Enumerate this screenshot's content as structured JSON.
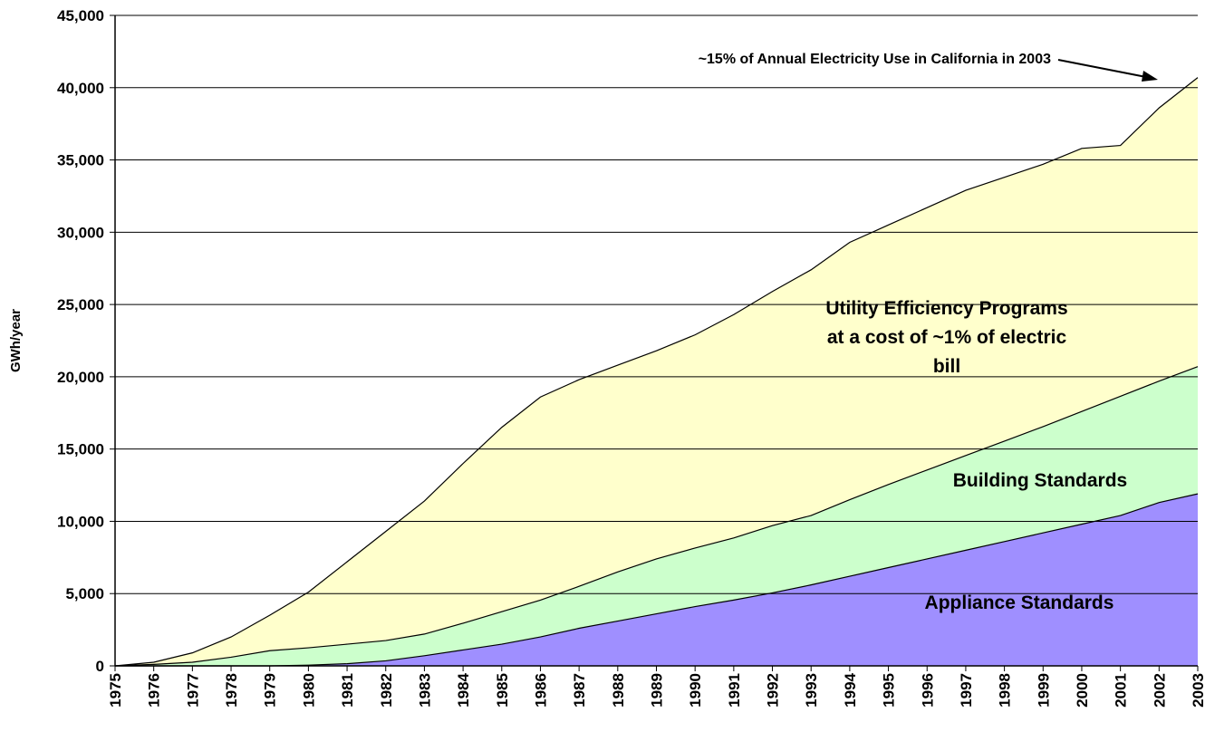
{
  "chart_data": {
    "type": "stacked_area",
    "y_label": "GWh/year",
    "annotation": "~15% of Annual Electricity Use in California in 2003",
    "categories": [
      "1975",
      "1976",
      "1977",
      "1978",
      "1979",
      "1980",
      "1981",
      "1982",
      "1983",
      "1984",
      "1985",
      "1986",
      "1987",
      "1988",
      "1989",
      "1990",
      "1991",
      "1992",
      "1993",
      "1994",
      "1995",
      "1996",
      "1997",
      "1998",
      "1999",
      "2000",
      "2001",
      "2002",
      "2003"
    ],
    "series": [
      {
        "name": "Appliance Standards",
        "color": "#9f8fff",
        "values": [
          0,
          0,
          0,
          0,
          0,
          50,
          150,
          350,
          700,
          1100,
          1500,
          2000,
          2600,
          3100,
          3600,
          4100,
          4550,
          5050,
          5600,
          6200,
          6800,
          7400,
          8000,
          8600,
          9200,
          9800,
          10400,
          11300,
          11900
        ]
      },
      {
        "name": "Building Standards",
        "color": "#ccffcc",
        "values": [
          0,
          100,
          250,
          600,
          1050,
          1200,
          1350,
          1400,
          1500,
          1850,
          2250,
          2550,
          2900,
          3400,
          3800,
          4050,
          4300,
          4650,
          4800,
          5300,
          5750,
          6150,
          6550,
          6950,
          7350,
          7800,
          8250,
          8400,
          8800
        ]
      },
      {
        "name": "Utility Efficiency Programs at a cost of ~1% of electric bill",
        "color": "#ffffcc",
        "values": [
          0,
          150,
          650,
          1400,
          2450,
          3850,
          5700,
          7550,
          9200,
          11050,
          12750,
          14050,
          14300,
          14300,
          14400,
          14750,
          15450,
          16200,
          17000,
          17800,
          17950,
          18150,
          18350,
          18250,
          18150,
          18200,
          17350,
          18900,
          20000
        ]
      }
    ],
    "ylim": [
      0,
      45000
    ],
    "yticks": [
      0,
      {
        "value": 5000,
        "label": "5,000"
      },
      {
        "value": 10000,
        "label": "10,000"
      },
      {
        "value": 15000,
        "label": "15,000"
      },
      {
        "value": 20000,
        "label": "20,000"
      },
      {
        "value": 25000,
        "label": "25,000"
      },
      {
        "value": 30000,
        "label": "30,000"
      },
      {
        "value": 35000,
        "label": "35,000"
      },
      {
        "value": 40000,
        "label": "40,000"
      },
      {
        "value": {
          "value": 45000,
          "label": "45,000"
        },
        "label": "45,000"
      }
    ],
    "grid": true
  }
}
